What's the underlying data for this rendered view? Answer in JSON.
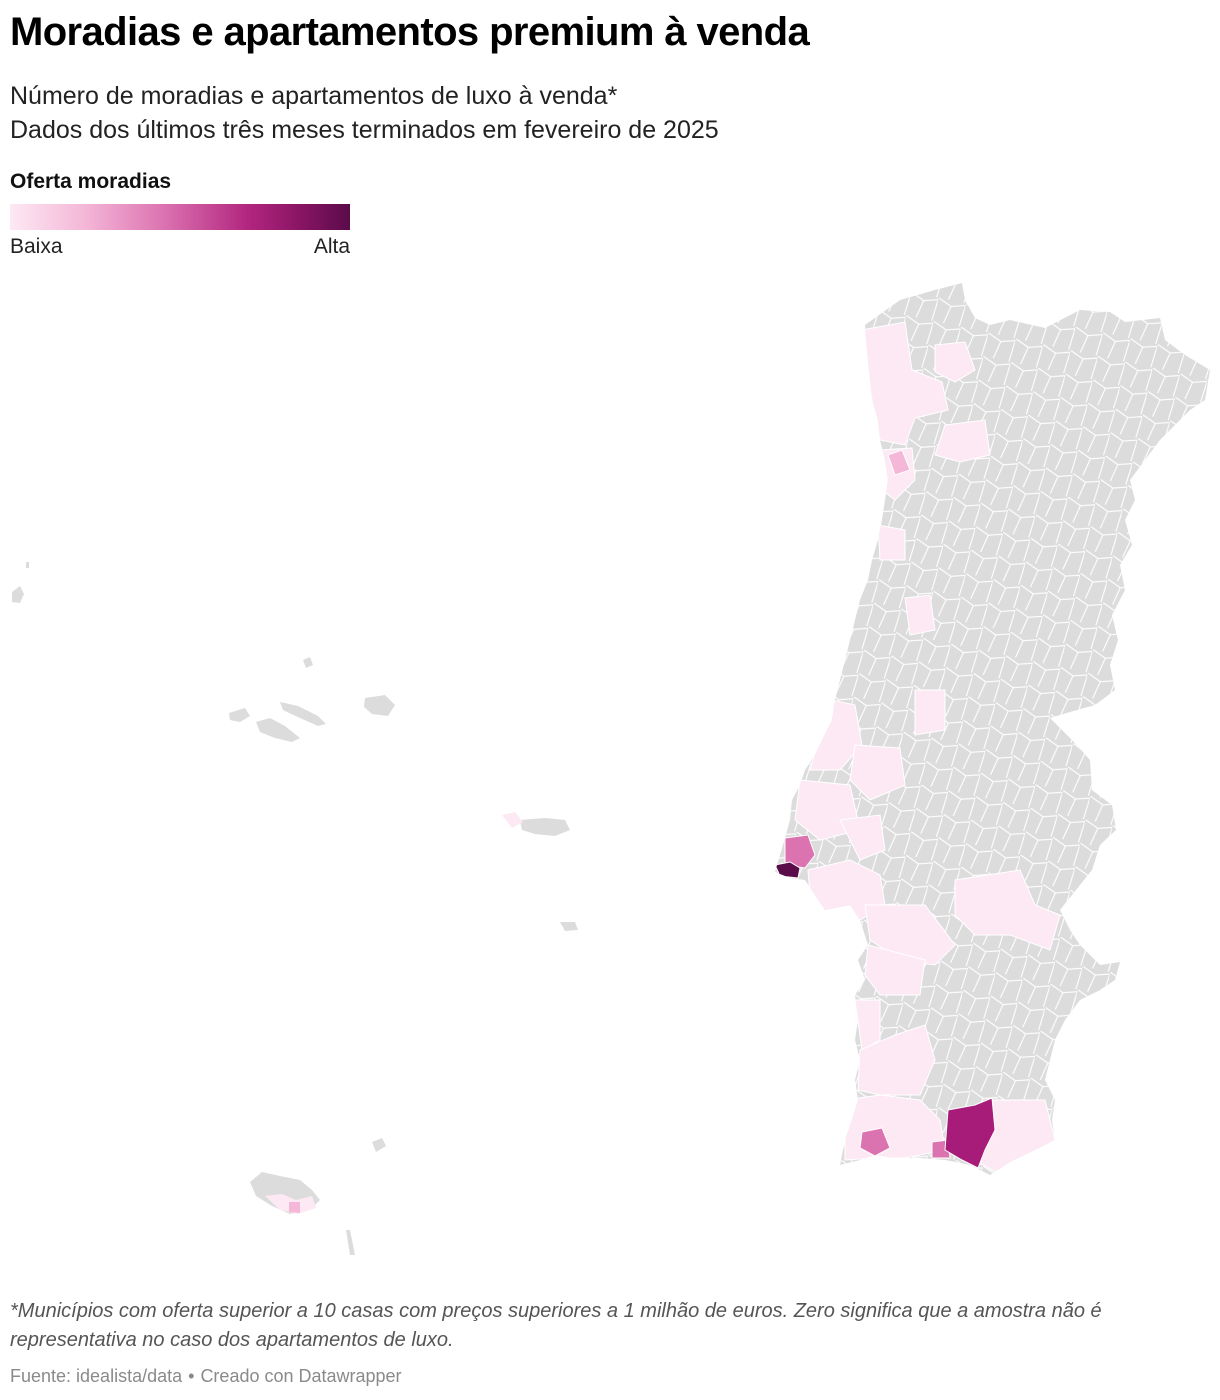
{
  "title": "Moradias e apartamentos premium à venda",
  "subtitle_line1": "Número de moradias e apartamentos de luxo à venda*",
  "subtitle_line2": "Dados dos últimos três meses terminados em fevereiro de 2025",
  "legend": {
    "title": "Oferta moradias",
    "low_label": "Baixa",
    "high_label": "Alta",
    "scale_colors": [
      "#fde9f4",
      "#f4b7d7",
      "#dc73b1",
      "#b2267f",
      "#8a1565",
      "#5a0b4a"
    ],
    "no_data_color": "#dcdcdc"
  },
  "map": {
    "regions_shown": [
      "Portugal continental",
      "Açores",
      "Madeira"
    ],
    "highlighted_areas_relative_level": {
      "cascais": "alta",
      "loule": "alta",
      "sintra": "media",
      "lagoa": "media",
      "litoral_norte": "baixa",
      "litoral_centro": "baixa",
      "alentejo_litoral": "baixa",
      "algarve_restante": "baixa"
    }
  },
  "footnote": "*Municípios com oferta superior a 10 casas com preços superiores a 1 milhão de euros. Zero significa que a amostra não é representativa no caso dos apartamentos de luxo.",
  "source": {
    "text": "Fuente: idealista/data",
    "separator": "•",
    "credit": "Creado con Datawrapper"
  }
}
